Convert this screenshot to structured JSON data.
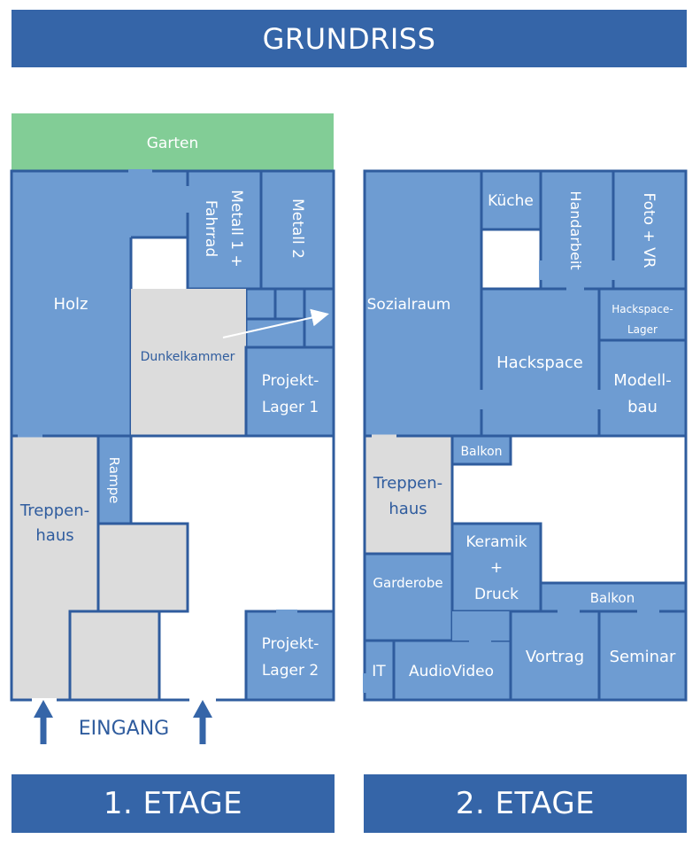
{
  "title": "GRUNDRISS",
  "floors": {
    "first": {
      "label": "1. ETAGE",
      "rooms": {
        "garten": "Garten",
        "holz": "Holz",
        "metall1_line1": "Metall 1 +",
        "metall1_line2": "Fahrrad",
        "metall2": "Metall 2",
        "dunkelkammer": "Dunkelkammer",
        "projektlager1_line1": "Projekt-",
        "projektlager1_line2": "Lager 1",
        "rampe": "Rampe",
        "treppenhaus_line1": "Treppen-",
        "treppenhaus_line2": "haus",
        "projektlager2_line1": "Projekt-",
        "projektlager2_line2": "Lager 2"
      },
      "entrance": "EINGANG"
    },
    "second": {
      "label": "2. ETAGE",
      "rooms": {
        "sozialraum": "Sozialraum",
        "kueche": "Küche",
        "handarbeit": "Handarbeit",
        "foto_vr": "Foto + VR",
        "hackspace_lager_line1": "Hackspace-",
        "hackspace_lager_line2": "Lager",
        "hackspace": "Hackspace",
        "modellbau_line1": "Modell-",
        "modellbau_line2": "bau",
        "balkon_top": "Balkon",
        "treppenhaus_line1": "Treppen-",
        "treppenhaus_line2": "haus",
        "keramik_line1": "Keramik",
        "keramik_line2": "+",
        "keramik_line3": "Druck",
        "garderobe": "Garderobe",
        "balkon_right": "Balkon",
        "it": "IT",
        "audiovideo": "AudioVideo",
        "vortrag": "Vortrag",
        "seminar": "Seminar"
      }
    }
  },
  "colors": {
    "room": "#6e9cd2",
    "wall": "#2f5c9e",
    "banner": "#3565a8",
    "garden": "#82cd96",
    "stairs": "#dcdcdc"
  }
}
